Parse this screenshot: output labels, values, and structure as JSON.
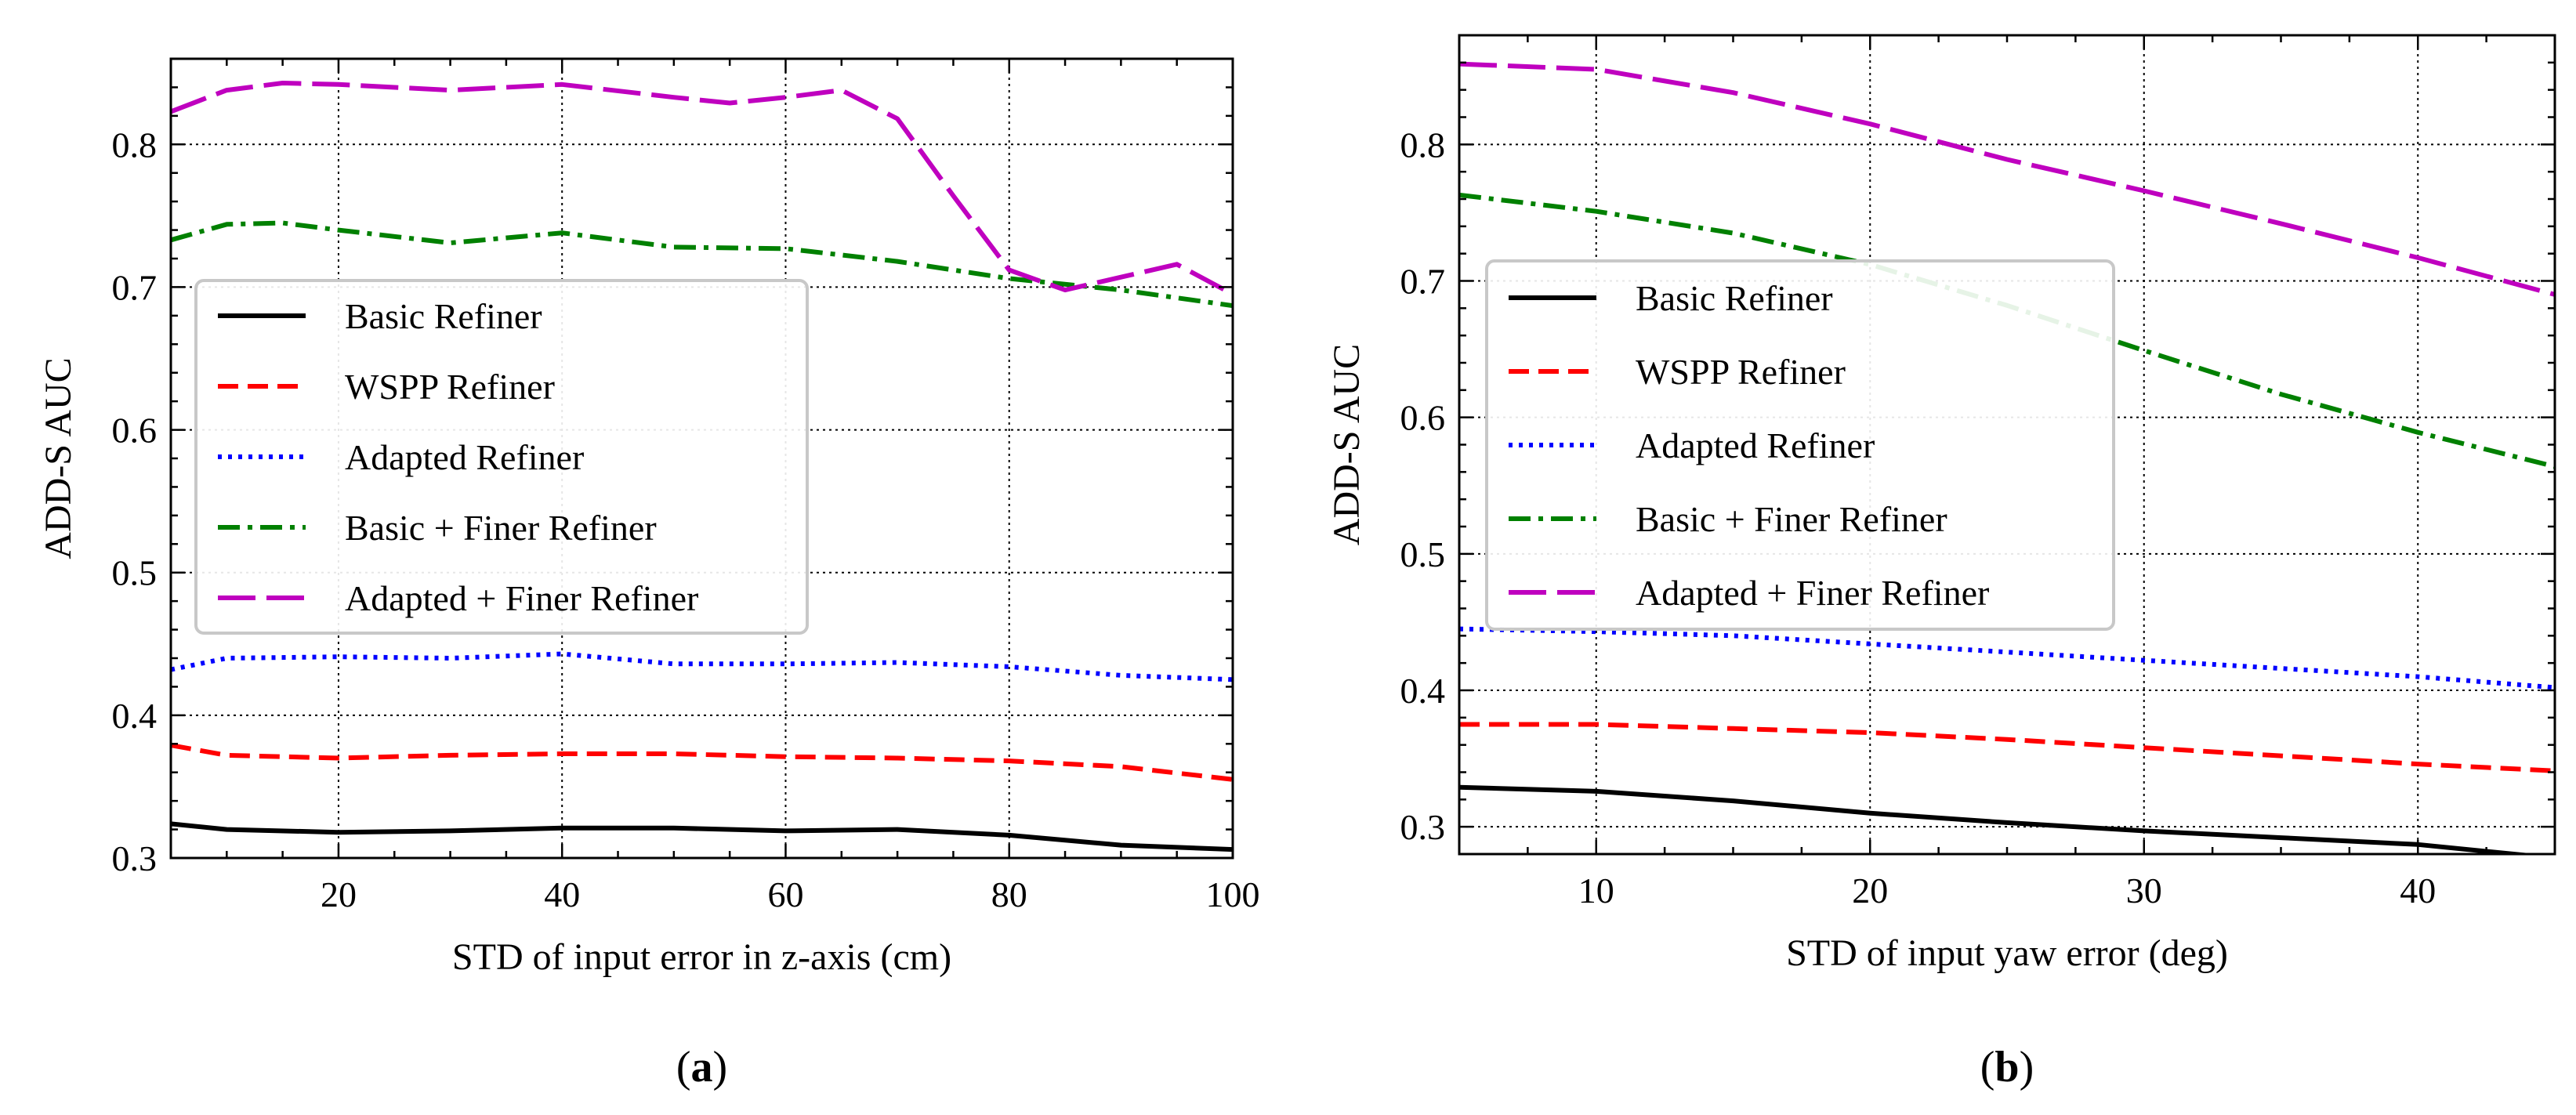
{
  "chart_data": [
    {
      "panel_label": "a",
      "type": "line",
      "xlabel": "STD of input error in z-axis (cm)",
      "ylabel": "ADD-S AUC",
      "xlim": [
        5,
        100
      ],
      "ylim": [
        0.3,
        0.86
      ],
      "xticks": [
        20,
        40,
        60,
        80,
        100
      ],
      "yticks": [
        0.3,
        0.4,
        0.5,
        0.6,
        0.7,
        0.8
      ],
      "grid": true,
      "legend_position": "center-left",
      "series": [
        {
          "name": "Basic Refiner",
          "color": "#000000",
          "dash": "solid",
          "x": [
            5,
            10,
            20,
            30,
            40,
            50,
            60,
            70,
            80,
            90,
            100
          ],
          "y": [
            0.324,
            0.32,
            0.318,
            0.319,
            0.321,
            0.321,
            0.319,
            0.32,
            0.316,
            0.309,
            0.306
          ]
        },
        {
          "name": "WSPP Refiner",
          "color": "#ff0000",
          "dash": "dashed",
          "x": [
            5,
            10,
            20,
            30,
            40,
            50,
            60,
            70,
            80,
            90,
            100
          ],
          "y": [
            0.379,
            0.372,
            0.37,
            0.372,
            0.373,
            0.373,
            0.371,
            0.37,
            0.368,
            0.364,
            0.355
          ]
        },
        {
          "name": "Adapted Refiner",
          "color": "#0000ff",
          "dash": "dotted",
          "x": [
            5,
            10,
            20,
            30,
            40,
            50,
            60,
            70,
            80,
            90,
            100
          ],
          "y": [
            0.432,
            0.44,
            0.441,
            0.44,
            0.443,
            0.436,
            0.436,
            0.437,
            0.434,
            0.428,
            0.425
          ]
        },
        {
          "name": "Basic + Finer Refiner",
          "color": "#008000",
          "dash": "dashdot",
          "x": [
            5,
            10,
            15,
            20,
            30,
            40,
            50,
            60,
            70,
            80,
            90,
            100
          ],
          "y": [
            0.733,
            0.744,
            0.745,
            0.74,
            0.731,
            0.738,
            0.728,
            0.727,
            0.718,
            0.706,
            0.698,
            0.687
          ]
        },
        {
          "name": "Adapted + Finer Refiner",
          "color": "#bf00bf",
          "dash": "longdash",
          "x": [
            5,
            10,
            15,
            20,
            30,
            40,
            50,
            55,
            60,
            65,
            70,
            75,
            80,
            85,
            90,
            95,
            100
          ],
          "y": [
            0.823,
            0.838,
            0.843,
            0.842,
            0.838,
            0.842,
            0.833,
            0.829,
            0.833,
            0.838,
            0.818,
            0.764,
            0.712,
            0.698,
            0.707,
            0.716,
            0.695
          ]
        }
      ]
    },
    {
      "panel_label": "b",
      "type": "line",
      "xlabel": "STD of input yaw error (deg)",
      "ylabel": "ADD-S AUC",
      "xlim": [
        5,
        45
      ],
      "ylim": [
        0.28,
        0.88
      ],
      "xticks": [
        10,
        20,
        30,
        40
      ],
      "yticks": [
        0.3,
        0.4,
        0.5,
        0.6,
        0.7,
        0.8
      ],
      "grid": true,
      "legend_position": "center-left",
      "series": [
        {
          "name": "Basic Refiner",
          "color": "#000000",
          "dash": "solid",
          "x": [
            5,
            10,
            15,
            20,
            25,
            30,
            35,
            40,
            45
          ],
          "y": [
            0.329,
            0.326,
            0.319,
            0.31,
            0.303,
            0.297,
            0.292,
            0.287,
            0.277
          ]
        },
        {
          "name": "WSPP Refiner",
          "color": "#ff0000",
          "dash": "dashed",
          "x": [
            5,
            10,
            15,
            20,
            25,
            30,
            35,
            40,
            45
          ],
          "y": [
            0.375,
            0.375,
            0.372,
            0.369,
            0.364,
            0.358,
            0.352,
            0.346,
            0.341
          ]
        },
        {
          "name": "Adapted Refiner",
          "color": "#0000ff",
          "dash": "dotted",
          "x": [
            5,
            10,
            15,
            20,
            25,
            30,
            35,
            40,
            45
          ],
          "y": [
            0.445,
            0.443,
            0.44,
            0.434,
            0.428,
            0.422,
            0.416,
            0.41,
            0.402
          ]
        },
        {
          "name": "Basic + Finer Refiner",
          "color": "#008000",
          "dash": "dashdot",
          "x": [
            5,
            10,
            15,
            20,
            25,
            30,
            35,
            40,
            45
          ],
          "y": [
            0.763,
            0.751,
            0.735,
            0.712,
            0.682,
            0.649,
            0.617,
            0.589,
            0.564
          ]
        },
        {
          "name": "Adapted + Finer Refiner",
          "color": "#bf00bf",
          "dash": "longdash",
          "x": [
            5,
            10,
            15,
            20,
            25,
            30,
            35,
            40,
            45
          ],
          "y": [
            0.859,
            0.855,
            0.838,
            0.815,
            0.789,
            0.766,
            0.742,
            0.717,
            0.69
          ]
        }
      ]
    }
  ]
}
